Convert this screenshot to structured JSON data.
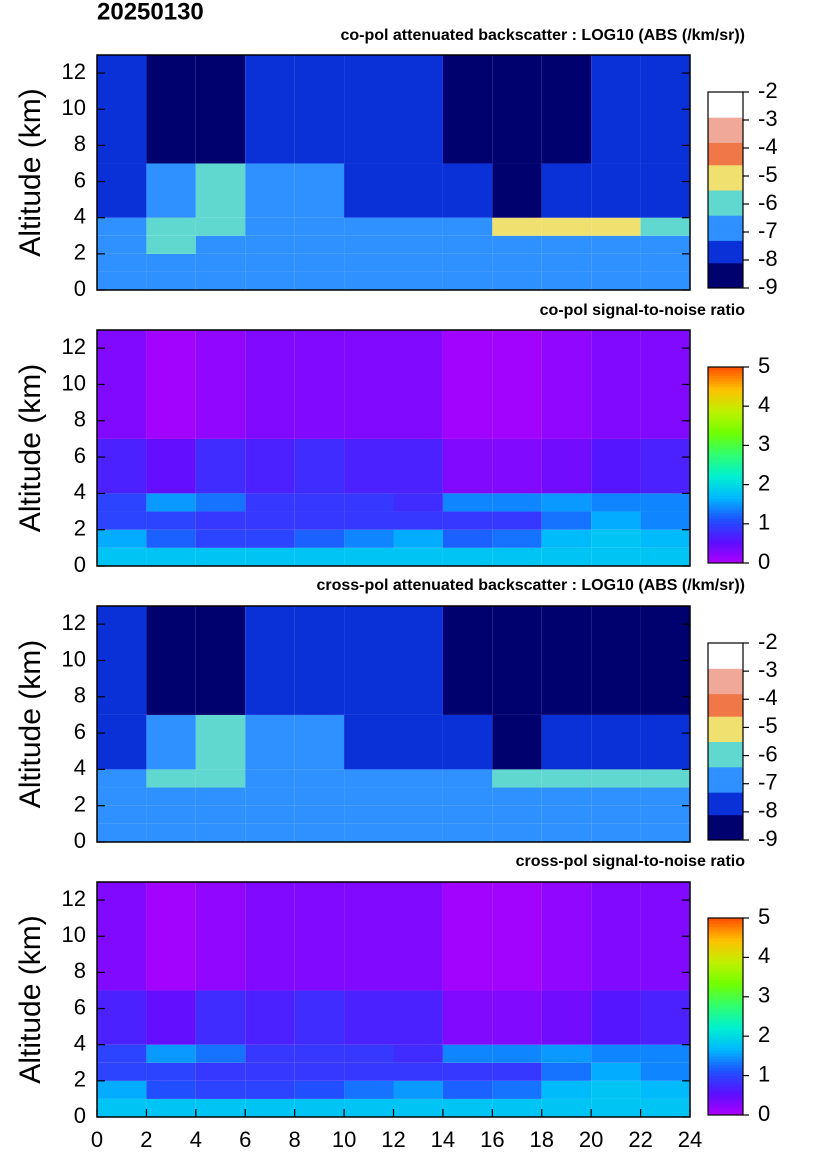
{
  "title": "20250130",
  "chart_data": [
    {
      "type": "heatmap",
      "title": "co-pol attenuated backscatter : LOG10 (ABS (/km/sr))",
      "y_label": "Altitude (km)",
      "x_edges": [
        0,
        2,
        4,
        6,
        8,
        10,
        12,
        14,
        16,
        18,
        20,
        22,
        24
      ],
      "y_edges": [
        0,
        1,
        2,
        3,
        4,
        7,
        13
      ],
      "values": [
        [
          -6.8,
          -6.8,
          -6.8,
          -6.8,
          -6.8,
          -6.8,
          -6.8,
          -6.8,
          -6.8,
          -6.8,
          -6.8,
          -6.8
        ],
        [
          -6.8,
          -6.7,
          -6.8,
          -6.8,
          -6.8,
          -6.8,
          -6.8,
          -6.8,
          -6.9,
          -6.9,
          -6.9,
          -6.9
        ],
        [
          -6.9,
          -6.3,
          -6.5,
          -6.9,
          -6.9,
          -7,
          -7,
          -7,
          -7.1,
          -7.1,
          -7.1,
          -7.1
        ],
        [
          -7,
          -5.6,
          -5.6,
          -6.9,
          -7,
          -7.1,
          -7.1,
          -6.5,
          -5.5,
          -5.5,
          -5.5,
          -5.6
        ],
        [
          -7.3,
          -6.8,
          -6.2,
          -6.6,
          -6.8,
          -7.3,
          -7.4,
          -8,
          -8.3,
          -8,
          -7.8,
          -7.8
        ],
        [
          -7.9,
          -8.3,
          -8.2,
          -7.8,
          -7.6,
          -7.5,
          -7.6,
          -8.4,
          -8.4,
          -8.3,
          -8.1,
          -8.1
        ]
      ],
      "ylim": [
        0,
        13
      ],
      "yticks": [
        0,
        2,
        4,
        6,
        8,
        10,
        12
      ],
      "xlim": [
        0,
        24
      ],
      "colorbar": {
        "lim": [
          -9,
          -2
        ],
        "ticks": [
          -2,
          -3,
          -4,
          -5,
          -6,
          -7,
          -8,
          -9
        ],
        "colors": [
          "#00006e",
          "#0a30d8",
          "#2f90ff",
          "#60d8d0",
          "#f0e070",
          "#f07848",
          "#f0a898",
          "#ffffff"
        ]
      }
    },
    {
      "type": "heatmap",
      "title": "co-pol signal-to-noise ratio",
      "y_label": "Altitude (km)",
      "x_edges": [
        0,
        2,
        4,
        6,
        8,
        10,
        12,
        14,
        16,
        18,
        20,
        22,
        24
      ],
      "y_edges": [
        0,
        1,
        2,
        3,
        4,
        7,
        13
      ],
      "values": [
        [
          1.8,
          1.8,
          1.8,
          1.8,
          1.8,
          1.8,
          1.8,
          1.8,
          1.8,
          1.8,
          1.8,
          1.8
        ],
        [
          1.6,
          1.2,
          1.0,
          1.0,
          1.2,
          1.4,
          1.6,
          1.2,
          1.3,
          1.7,
          1.8,
          1.7
        ],
        [
          1.0,
          1.0,
          0.9,
          0.9,
          0.9,
          0.9,
          0.9,
          0.9,
          0.9,
          1.3,
          1.6,
          1.4
        ],
        [
          1.0,
          1.5,
          1.3,
          0.9,
          0.9,
          0.9,
          0.8,
          1.4,
          1.4,
          1.5,
          1.4,
          1.4
        ],
        [
          0.7,
          0.5,
          0.8,
          0.7,
          0.8,
          0.7,
          0.7,
          0.3,
          0.3,
          0.4,
          0.6,
          0.7
        ],
        [
          0.3,
          0.1,
          0.2,
          0.3,
          0.3,
          0.3,
          0.3,
          0.1,
          0.1,
          0.2,
          0.3,
          0.3
        ]
      ],
      "ylim": [
        0,
        13
      ],
      "yticks": [
        0,
        2,
        4,
        6,
        8,
        10,
        12
      ],
      "xlim": [
        0,
        24
      ],
      "colorbar": {
        "lim": [
          0,
          5
        ],
        "ticks": [
          5,
          4,
          3,
          2,
          1,
          0
        ],
        "colors": [
          "#b000ff",
          "#5a10ff",
          "#2050ff",
          "#00b8ff",
          "#00f0d0",
          "#30ff70",
          "#70ff00",
          "#c0f000",
          "#ffc000",
          "#ff5000"
        ]
      }
    },
    {
      "type": "heatmap",
      "title": "cross-pol attenuated backscatter : LOG10 (ABS (/km/sr))",
      "y_label": "Altitude (km)",
      "x_edges": [
        0,
        2,
        4,
        6,
        8,
        10,
        12,
        14,
        16,
        18,
        20,
        22,
        24
      ],
      "y_edges": [
        0,
        1,
        2,
        3,
        4,
        7,
        13
      ],
      "values": [
        [
          -6.9,
          -6.9,
          -6.9,
          -6.9,
          -6.9,
          -6.9,
          -6.9,
          -6.9,
          -6.9,
          -6.9,
          -6.9,
          -6.9
        ],
        [
          -6.9,
          -6.8,
          -6.9,
          -6.9,
          -6.9,
          -6.9,
          -6.9,
          -6.9,
          -7,
          -7,
          -7,
          -7
        ],
        [
          -7,
          -6.4,
          -6.6,
          -7,
          -7,
          -7.1,
          -7.1,
          -7.1,
          -7.2,
          -7.2,
          -7.2,
          -7.2
        ],
        [
          -7.1,
          -5.7,
          -5.7,
          -7,
          -7.1,
          -7.2,
          -7.2,
          -6.6,
          -5.6,
          -5.6,
          -5.6,
          -5.7
        ],
        [
          -7.4,
          -7,
          -6.3,
          -6.8,
          -7,
          -7.4,
          -7.5,
          -8.1,
          -8.4,
          -8.1,
          -7.9,
          -7.9
        ],
        [
          -8,
          -8.4,
          -8.3,
          -7.9,
          -7.7,
          -7.6,
          -7.7,
          -8.5,
          -8.5,
          -8.4,
          -8.2,
          -8.2
        ]
      ],
      "ylim": [
        0,
        13
      ],
      "yticks": [
        0,
        2,
        4,
        6,
        8,
        10,
        12
      ],
      "xlim": [
        0,
        24
      ],
      "colorbar": {
        "lim": [
          -9,
          -2
        ],
        "ticks": [
          -2,
          -3,
          -4,
          -5,
          -6,
          -7,
          -8,
          -9
        ],
        "colors": [
          "#00006e",
          "#0a30d8",
          "#2f90ff",
          "#60d8d0",
          "#f0e070",
          "#f07848",
          "#f0a898",
          "#ffffff"
        ]
      }
    },
    {
      "type": "heatmap",
      "title": "cross-pol signal-to-noise ratio",
      "y_label": "Altitude (km)",
      "x_edges": [
        0,
        2,
        4,
        6,
        8,
        10,
        12,
        14,
        16,
        18,
        20,
        22,
        24
      ],
      "y_edges": [
        0,
        1,
        2,
        3,
        4,
        7,
        13
      ],
      "values": [
        [
          1.8,
          1.8,
          1.8,
          1.8,
          1.8,
          1.8,
          1.8,
          1.8,
          1.8,
          1.8,
          1.8,
          1.8
        ],
        [
          1.6,
          1.1,
          1.0,
          1.0,
          1.1,
          1.3,
          1.5,
          1.2,
          1.3,
          1.7,
          1.8,
          1.7
        ],
        [
          1.0,
          1.0,
          0.9,
          0.9,
          0.9,
          0.9,
          0.9,
          0.9,
          0.9,
          1.3,
          1.6,
          1.4
        ],
        [
          1.0,
          1.5,
          1.3,
          0.9,
          0.9,
          0.9,
          0.8,
          1.4,
          1.4,
          1.5,
          1.4,
          1.4
        ],
        [
          0.7,
          0.5,
          0.8,
          0.7,
          0.8,
          0.7,
          0.7,
          0.3,
          0.3,
          0.4,
          0.6,
          0.7
        ],
        [
          0.3,
          0.1,
          0.2,
          0.3,
          0.3,
          0.3,
          0.3,
          0.1,
          0.1,
          0.2,
          0.3,
          0.3
        ]
      ],
      "ylim": [
        0,
        13
      ],
      "yticks": [
        0,
        2,
        4,
        6,
        8,
        10,
        12
      ],
      "xlim": [
        0,
        24
      ],
      "xticks": [
        0,
        2,
        4,
        6,
        8,
        10,
        12,
        14,
        16,
        18,
        20,
        22,
        24
      ],
      "colorbar": {
        "lim": [
          0,
          5
        ],
        "ticks": [
          5,
          4,
          3,
          2,
          1,
          0
        ],
        "colors": [
          "#b000ff",
          "#5a10ff",
          "#2050ff",
          "#00b8ff",
          "#00f0d0",
          "#30ff70",
          "#70ff00",
          "#c0f000",
          "#ffc000",
          "#ff5000"
        ]
      }
    }
  ]
}
